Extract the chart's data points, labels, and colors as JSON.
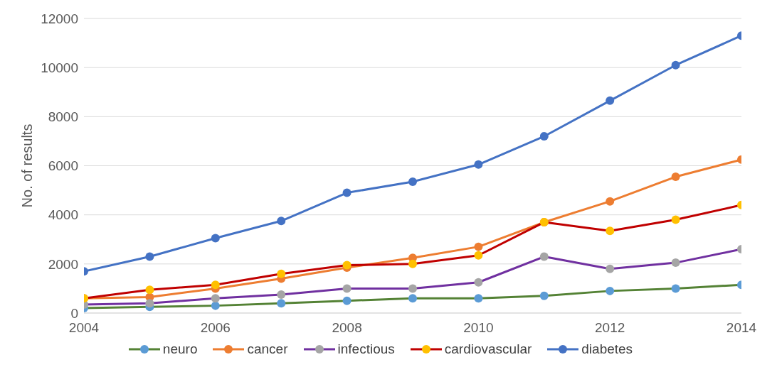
{
  "chart_data": {
    "type": "line",
    "ylabel": "No. of results",
    "x": [
      2004,
      2005,
      2006,
      2007,
      2008,
      2009,
      2010,
      2011,
      2012,
      2013,
      2014
    ],
    "xlim": [
      2004,
      2014
    ],
    "xticks": [
      2004,
      2006,
      2008,
      2010,
      2012,
      2014
    ],
    "ylim": [
      0,
      12000
    ],
    "yticks": [
      0,
      2000,
      4000,
      6000,
      8000,
      10000,
      12000
    ],
    "grid": "y",
    "legend": "bottom",
    "marker": "circle",
    "line_style": "solid",
    "series": [
      {
        "name": "neuro",
        "color": "#548235",
        "colors": [
          "#5b9bd5",
          "#5b9bd5",
          "#5b9bd5",
          "#5b9bd5",
          "#5b9bd5",
          "#5b9bd5",
          "#5b9bd5",
          "#5b9bd5",
          "#5b9bd5",
          "#5b9bd5",
          "#5b9bd5"
        ],
        "values": [
          200,
          250,
          300,
          400,
          500,
          600,
          600,
          700,
          900,
          1000,
          1150
        ]
      },
      {
        "name": "cancer",
        "color": "#ed7d31",
        "colors": [
          "#ed7d31",
          "#ed7d31",
          "#ed7d31",
          "#ed7d31",
          "#ed7d31",
          "#ed7d31",
          "#ed7d31",
          "#ed7d31",
          "#ed7d31",
          "#ed7d31",
          "#ed7d31"
        ],
        "values": [
          600,
          650,
          1000,
          1400,
          1850,
          2250,
          2700,
          3700,
          4550,
          5550,
          6250
        ]
      },
      {
        "name": "infectious",
        "color": "#7030a0",
        "colors": [
          "#a5a5a5",
          "#a5a5a5",
          "#a5a5a5",
          "#a5a5a5",
          "#a5a5a5",
          "#a5a5a5",
          "#a5a5a5",
          "#a5a5a5",
          "#a5a5a5",
          "#a5a5a5",
          "#a5a5a5"
        ],
        "values": [
          350,
          400,
          600,
          750,
          1000,
          1000,
          1250,
          2300,
          1800,
          2050,
          2600
        ]
      },
      {
        "name": "cardiovascular",
        "color": "#c00000",
        "colors": [
          "#ffc000",
          "#ffc000",
          "#ffc000",
          "#ffc000",
          "#ffc000",
          "#ffc000",
          "#ffc000",
          "#ffc000",
          "#ffc000",
          "#ffc000",
          "#ffc000"
        ],
        "values": [
          600,
          950,
          1150,
          1600,
          1950,
          2000,
          2350,
          3700,
          3350,
          3800,
          4400
        ]
      },
      {
        "name": "diabetes",
        "color": "#4472c4",
        "colors": [
          "#4472c4",
          "#4472c4",
          "#4472c4",
          "#4472c4",
          "#4472c4",
          "#4472c4",
          "#4472c4",
          "#4472c4",
          "#4472c4",
          "#4472c4",
          "#4472c4"
        ],
        "values": [
          1700,
          2300,
          3050,
          3750,
          4900,
          5350,
          6050,
          7200,
          8650,
          10100,
          11300
        ]
      }
    ]
  }
}
